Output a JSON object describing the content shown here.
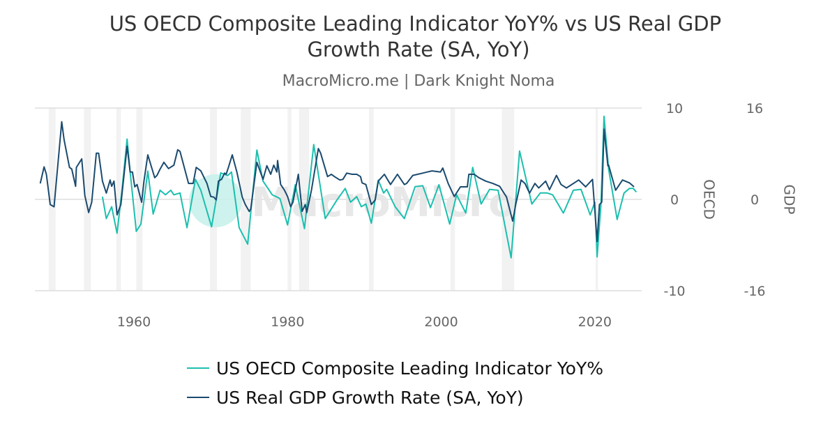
{
  "chart_data": {
    "type": "line",
    "title": "US OECD Composite Leading Indicator YoY% vs US Real GDP Growth Rate (SA, YoY)",
    "subtitle": "MacroMicro.me | Dark Knight Noma",
    "watermark": "MacroMicro",
    "xlim": [
      1947.1,
      2026.1
    ],
    "x_ticks": [
      1960,
      1980,
      2000,
      2020
    ],
    "y_axes": [
      {
        "id": "oecd",
        "label": "OECD",
        "ylim": [
          -10,
          10
        ],
        "ticks": [
          10,
          0,
          -10
        ]
      },
      {
        "id": "gdp",
        "label": "GDP",
        "ylim": [
          -16,
          16
        ],
        "ticks": [
          16,
          0,
          -16
        ]
      }
    ],
    "grid": "horizontal",
    "legend_position": "bottom",
    "recessions": [
      [
        1948.9,
        1949.8
      ],
      [
        1953.5,
        1954.4
      ],
      [
        1957.7,
        1958.3
      ],
      [
        1960.3,
        1961.1
      ],
      [
        1969.9,
        1970.8
      ],
      [
        1973.9,
        1975.2
      ],
      [
        1980.0,
        1980.5
      ],
      [
        1981.5,
        1982.8
      ],
      [
        1990.6,
        1991.2
      ],
      [
        2001.2,
        2001.8
      ],
      [
        2007.9,
        2009.5
      ],
      [
        2020.1,
        2020.4
      ]
    ],
    "series": [
      {
        "name": "US OECD Composite Leading Indicator YoY%",
        "axis": "oecd",
        "color": "#1cbfae",
        "points": [
          [
            1955.9,
            0.3
          ],
          [
            1956.4,
            -2.1
          ],
          [
            1957.1,
            -0.8
          ],
          [
            1957.8,
            -3.7
          ],
          [
            1958.4,
            0.7
          ],
          [
            1959.1,
            6.6
          ],
          [
            1959.5,
            3.0
          ],
          [
            1960.3,
            -3.5
          ],
          [
            1960.9,
            -2.7
          ],
          [
            1961.8,
            3.1
          ],
          [
            1962.5,
            -1.6
          ],
          [
            1963.4,
            1.0
          ],
          [
            1964.1,
            0.5
          ],
          [
            1964.8,
            1.0
          ],
          [
            1965.2,
            0.5
          ],
          [
            1966.0,
            0.7
          ],
          [
            1966.9,
            -3.1
          ],
          [
            1968.0,
            2.2
          ],
          [
            1968.7,
            1.0
          ],
          [
            1970.1,
            -3.0
          ],
          [
            1971.3,
            2.9
          ],
          [
            1972.2,
            2.6
          ],
          [
            1972.7,
            3.0
          ],
          [
            1973.7,
            -3.1
          ],
          [
            1974.8,
            -4.9
          ],
          [
            1976.0,
            5.4
          ],
          [
            1976.8,
            2.0
          ],
          [
            1978.0,
            0.5
          ],
          [
            1979.0,
            0.1
          ],
          [
            1980.0,
            -2.8
          ],
          [
            1981.0,
            1.6
          ],
          [
            1982.2,
            -3.2
          ],
          [
            1983.4,
            6.0
          ],
          [
            1984.9,
            -2.1
          ],
          [
            1986.4,
            -0.1
          ],
          [
            1987.5,
            1.2
          ],
          [
            1988.2,
            -0.3
          ],
          [
            1989.0,
            0.3
          ],
          [
            1989.6,
            -0.8
          ],
          [
            1990.2,
            -0.5
          ],
          [
            1990.9,
            -2.6
          ],
          [
            1991.8,
            2.1
          ],
          [
            1992.5,
            0.7
          ],
          [
            1992.9,
            1.1
          ],
          [
            1994.0,
            -0.8
          ],
          [
            1995.2,
            -2.1
          ],
          [
            1996.6,
            1.4
          ],
          [
            1997.6,
            1.5
          ],
          [
            1998.6,
            -0.9
          ],
          [
            1999.7,
            1.6
          ],
          [
            2001.1,
            -2.7
          ],
          [
            2002.0,
            0.5
          ],
          [
            2003.2,
            -1.5
          ],
          [
            2004.1,
            3.5
          ],
          [
            2005.2,
            -0.5
          ],
          [
            2006.3,
            1.1
          ],
          [
            2007.4,
            1.0
          ],
          [
            2009.1,
            -6.4
          ],
          [
            2010.2,
            5.3
          ],
          [
            2011.8,
            -0.5
          ],
          [
            2012.9,
            0.7
          ],
          [
            2013.8,
            0.7
          ],
          [
            2014.5,
            0.5
          ],
          [
            2015.9,
            -1.5
          ],
          [
            2017.2,
            1.0
          ],
          [
            2018.2,
            1.1
          ],
          [
            2019.4,
            -1.7
          ],
          [
            2020.0,
            -0.3
          ],
          [
            2020.3,
            -6.3
          ],
          [
            2020.8,
            -0.5
          ],
          [
            2021.2,
            9.1
          ],
          [
            2021.8,
            3.3
          ],
          [
            2022.9,
            -2.2
          ],
          [
            2023.8,
            0.7
          ],
          [
            2024.5,
            1.2
          ],
          [
            2025.0,
            1.2
          ],
          [
            2025.4,
            0.8
          ]
        ]
      },
      {
        "name": "US Real GDP Growth Rate (SA, YoY)",
        "axis": "gdp",
        "color": "#1b4a6e",
        "points": [
          [
            1947.8,
            2.8
          ],
          [
            1948.3,
            5.7
          ],
          [
            1948.6,
            4.4
          ],
          [
            1949.1,
            -0.9
          ],
          [
            1949.6,
            -1.3
          ],
          [
            1950.6,
            13.6
          ],
          [
            1950.9,
            10.5
          ],
          [
            1951.6,
            5.6
          ],
          [
            1951.9,
            5.3
          ],
          [
            1952.4,
            2.3
          ],
          [
            1952.5,
            5.6
          ],
          [
            1953.2,
            7.1
          ],
          [
            1953.6,
            0.7
          ],
          [
            1954.1,
            -2.3
          ],
          [
            1954.5,
            -0.5
          ],
          [
            1955.1,
            8.1
          ],
          [
            1955.4,
            8.1
          ],
          [
            1955.9,
            3.2
          ],
          [
            1956.4,
            1.1
          ],
          [
            1956.9,
            3.4
          ],
          [
            1957.1,
            2.3
          ],
          [
            1957.4,
            3.2
          ],
          [
            1957.8,
            -2.7
          ],
          [
            1958.3,
            -0.9
          ],
          [
            1959.1,
            9.3
          ],
          [
            1959.5,
            4.8
          ],
          [
            1959.8,
            4.8
          ],
          [
            1960.1,
            2.2
          ],
          [
            1960.4,
            2.6
          ],
          [
            1961.0,
            -0.5
          ],
          [
            1961.3,
            3.2
          ],
          [
            1961.8,
            7.8
          ],
          [
            1962.7,
            3.8
          ],
          [
            1963.0,
            4.2
          ],
          [
            1963.4,
            5.3
          ],
          [
            1963.9,
            6.5
          ],
          [
            1964.5,
            5.4
          ],
          [
            1965.2,
            6.0
          ],
          [
            1965.7,
            8.7
          ],
          [
            1966.0,
            8.4
          ],
          [
            1967.1,
            2.8
          ],
          [
            1967.7,
            2.8
          ],
          [
            1968.1,
            5.6
          ],
          [
            1968.7,
            5.0
          ],
          [
            1969.5,
            2.8
          ],
          [
            1970.0,
            0.5
          ],
          [
            1970.4,
            0.4
          ],
          [
            1970.7,
            -0.1
          ],
          [
            1971.0,
            3.2
          ],
          [
            1971.4,
            3.5
          ],
          [
            1971.8,
            4.6
          ],
          [
            1972.0,
            4.4
          ],
          [
            1972.3,
            5.6
          ],
          [
            1972.8,
            7.8
          ],
          [
            1973.4,
            4.8
          ],
          [
            1974.1,
            0.4
          ],
          [
            1974.5,
            -0.9
          ],
          [
            1975.0,
            -2.1
          ],
          [
            1975.2,
            -1.7
          ],
          [
            1976.0,
            6.5
          ],
          [
            1976.8,
            3.5
          ],
          [
            1977.3,
            5.9
          ],
          [
            1977.8,
            4.4
          ],
          [
            1978.2,
            6.0
          ],
          [
            1978.6,
            4.8
          ],
          [
            1978.7,
            6.8
          ],
          [
            1979.1,
            2.6
          ],
          [
            1979.6,
            1.6
          ],
          [
            1980.0,
            0.5
          ],
          [
            1980.4,
            -1.3
          ],
          [
            1980.7,
            -0.5
          ],
          [
            1981.4,
            4.4
          ],
          [
            1981.9,
            -2.1
          ],
          [
            1982.3,
            -0.9
          ],
          [
            1982.5,
            -2.3
          ],
          [
            1983.1,
            1.6
          ],
          [
            1984.0,
            8.9
          ],
          [
            1984.3,
            8.1
          ],
          [
            1985.2,
            4.0
          ],
          [
            1985.7,
            4.4
          ],
          [
            1986.1,
            4.0
          ],
          [
            1986.8,
            3.4
          ],
          [
            1987.2,
            3.5
          ],
          [
            1987.7,
            4.6
          ],
          [
            1988.4,
            4.4
          ],
          [
            1989.0,
            4.4
          ],
          [
            1989.5,
            4.0
          ],
          [
            1989.7,
            2.9
          ],
          [
            1990.2,
            2.6
          ],
          [
            1990.9,
            -0.9
          ],
          [
            1991.4,
            -0.1
          ],
          [
            1991.8,
            3.2
          ],
          [
            1992.6,
            4.4
          ],
          [
            1993.4,
            2.6
          ],
          [
            1994.3,
            4.4
          ],
          [
            1995.2,
            2.6
          ],
          [
            1995.5,
            2.8
          ],
          [
            1996.3,
            4.2
          ],
          [
            1997.6,
            4.6
          ],
          [
            1998.2,
            4.8
          ],
          [
            1998.8,
            5.0
          ],
          [
            1999.9,
            4.8
          ],
          [
            2000.2,
            5.5
          ],
          [
            2000.9,
            2.8
          ],
          [
            2001.7,
            0.5
          ],
          [
            2002.5,
            2.2
          ],
          [
            2003.4,
            2.2
          ],
          [
            2003.6,
            4.4
          ],
          [
            2004.3,
            4.4
          ],
          [
            2004.9,
            3.8
          ],
          [
            2005.8,
            3.2
          ],
          [
            2006.7,
            2.8
          ],
          [
            2007.6,
            2.3
          ],
          [
            2008.5,
            0.4
          ],
          [
            2009.3,
            -3.8
          ],
          [
            2009.7,
            -0.9
          ],
          [
            2010.4,
            3.4
          ],
          [
            2010.9,
            2.8
          ],
          [
            2011.5,
            1.1
          ],
          [
            2012.2,
            2.8
          ],
          [
            2012.7,
            2.0
          ],
          [
            2013.6,
            3.2
          ],
          [
            2014.1,
            1.7
          ],
          [
            2015.0,
            4.2
          ],
          [
            2015.6,
            2.6
          ],
          [
            2016.3,
            2.0
          ],
          [
            2017.9,
            3.4
          ],
          [
            2018.8,
            2.2
          ],
          [
            2019.7,
            3.5
          ],
          [
            2020.3,
            -7.4
          ],
          [
            2020.6,
            -0.9
          ],
          [
            2020.9,
            -0.5
          ],
          [
            2021.2,
            12.3
          ],
          [
            2021.7,
            5.9
          ],
          [
            2021.8,
            6.0
          ],
          [
            2022.7,
            1.6
          ],
          [
            2023.6,
            3.4
          ],
          [
            2024.5,
            2.9
          ],
          [
            2025.1,
            2.2
          ]
        ]
      }
    ]
  }
}
